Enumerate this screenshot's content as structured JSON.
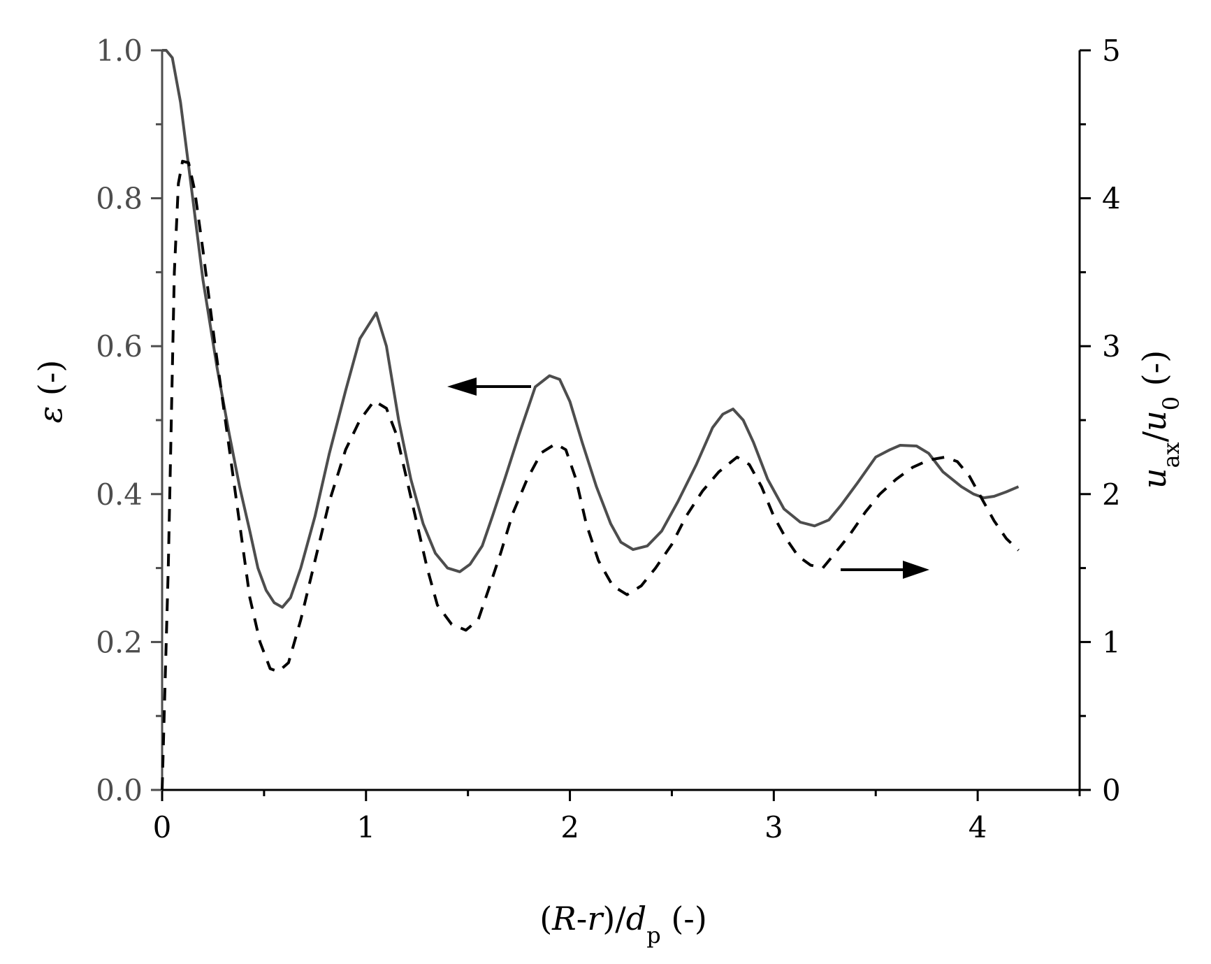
{
  "chart_data": {
    "type": "line",
    "x_axis": {
      "label_parts": [
        "(",
        "R",
        "-",
        "r",
        ")/",
        "d",
        "p",
        " (-)"
      ],
      "range": [
        0,
        4.5
      ],
      "ticks": [
        "0",
        "1",
        "2",
        "3",
        "4"
      ],
      "tick_values": [
        0,
        1,
        2,
        3,
        4
      ],
      "minor_tick_values": [
        0.5,
        1.5,
        2.5,
        3.5,
        4.5
      ]
    },
    "y_axis_left": {
      "label_parts": [
        "ε",
        " (-)"
      ],
      "range": [
        0,
        1
      ],
      "ticks": [
        "0.0",
        "0.2",
        "0.4",
        "0.6",
        "0.8",
        "1.0"
      ],
      "tick_values": [
        0,
        0.2,
        0.4,
        0.6,
        0.8,
        1.0
      ],
      "minor_tick_values": [
        0.1,
        0.3,
        0.5,
        0.7,
        0.9
      ],
      "color": "#4d4d4d"
    },
    "y_axis_right": {
      "label_parts": [
        "u",
        "ax",
        "/",
        "u",
        "0",
        " (-)"
      ],
      "range": [
        0,
        5
      ],
      "ticks": [
        "0",
        "1",
        "2",
        "3",
        "4",
        "5"
      ],
      "tick_values": [
        0,
        1,
        2,
        3,
        4,
        5
      ],
      "minor_tick_values": [
        0.5,
        1.5,
        2.5,
        3.5,
        4.5
      ],
      "color": "#000000"
    },
    "series": [
      {
        "axis": "left",
        "style": "solid",
        "color": "#4d4d4d",
        "x": [
          0,
          0.02,
          0.05,
          0.09,
          0.15,
          0.2,
          0.27,
          0.33,
          0.38,
          0.43,
          0.47,
          0.51,
          0.55,
          0.59,
          0.63,
          0.68,
          0.75,
          0.82,
          0.9,
          0.97,
          1.05,
          1.1,
          1.16,
          1.22,
          1.28,
          1.34,
          1.4,
          1.46,
          1.51,
          1.57,
          1.62,
          1.68,
          1.75,
          1.83,
          1.9,
          1.95,
          2.0,
          2.06,
          2.13,
          2.2,
          2.25,
          2.31,
          2.38,
          2.45,
          2.53,
          2.62,
          2.7,
          2.75,
          2.8,
          2.85,
          2.9,
          2.97,
          3.05,
          3.13,
          3.2,
          3.27,
          3.33,
          3.41,
          3.5,
          3.57,
          3.62,
          3.7,
          3.76,
          3.83,
          3.92,
          3.98,
          4.03,
          4.08,
          4.14,
          4.2
        ],
        "y": [
          1.0,
          1.0,
          0.99,
          0.93,
          0.8,
          0.69,
          0.57,
          0.48,
          0.41,
          0.35,
          0.3,
          0.27,
          0.253,
          0.247,
          0.26,
          0.3,
          0.37,
          0.455,
          0.54,
          0.61,
          0.645,
          0.6,
          0.5,
          0.42,
          0.36,
          0.32,
          0.3,
          0.295,
          0.305,
          0.33,
          0.37,
          0.42,
          0.48,
          0.545,
          0.56,
          0.555,
          0.525,
          0.47,
          0.41,
          0.36,
          0.335,
          0.325,
          0.33,
          0.35,
          0.39,
          0.44,
          0.49,
          0.508,
          0.515,
          0.5,
          0.47,
          0.42,
          0.38,
          0.362,
          0.357,
          0.365,
          0.385,
          0.415,
          0.45,
          0.46,
          0.466,
          0.465,
          0.455,
          0.43,
          0.41,
          0.4,
          0.395,
          0.397,
          0.403,
          0.41
        ]
      },
      {
        "axis": "right",
        "style": "dashed",
        "color": "#000000",
        "x": [
          0,
          0.03,
          0.06,
          0.08,
          0.1,
          0.13,
          0.16,
          0.2,
          0.26,
          0.32,
          0.38,
          0.43,
          0.48,
          0.53,
          0.57,
          0.62,
          0.68,
          0.75,
          0.82,
          0.9,
          0.97,
          1.04,
          1.1,
          1.15,
          1.2,
          1.25,
          1.3,
          1.35,
          1.42,
          1.49,
          1.55,
          1.6,
          1.66,
          1.72,
          1.79,
          1.86,
          1.93,
          1.98,
          2.03,
          2.08,
          2.14,
          2.21,
          2.28,
          2.35,
          2.42,
          2.5,
          2.57,
          2.65,
          2.73,
          2.82,
          2.88,
          2.94,
          3.0,
          3.06,
          3.12,
          3.18,
          3.24,
          3.3,
          3.37,
          3.45,
          3.52,
          3.6,
          3.68,
          3.76,
          3.84,
          3.9,
          3.96,
          4.02,
          4.08,
          4.14,
          4.2
        ],
        "y": [
          0,
          1.5,
          3.5,
          4.1,
          4.25,
          4.24,
          4.05,
          3.65,
          3.0,
          2.4,
          1.8,
          1.3,
          1.0,
          0.82,
          0.8,
          0.86,
          1.15,
          1.55,
          1.95,
          2.3,
          2.5,
          2.63,
          2.58,
          2.4,
          2.1,
          1.8,
          1.5,
          1.25,
          1.12,
          1.08,
          1.15,
          1.35,
          1.6,
          1.87,
          2.1,
          2.28,
          2.34,
          2.3,
          2.1,
          1.8,
          1.55,
          1.38,
          1.32,
          1.38,
          1.5,
          1.66,
          1.85,
          2.02,
          2.15,
          2.25,
          2.2,
          2.05,
          1.85,
          1.7,
          1.58,
          1.52,
          1.5,
          1.6,
          1.72,
          1.88,
          2.0,
          2.1,
          2.18,
          2.23,
          2.25,
          2.22,
          2.12,
          1.97,
          1.82,
          1.7,
          1.62
        ]
      }
    ],
    "annotations": [
      {
        "type": "arrow",
        "direction": "left",
        "points_to_axis": "left"
      },
      {
        "type": "arrow",
        "direction": "right",
        "points_to_axis": "right"
      }
    ],
    "grid": false,
    "legend": "none"
  }
}
